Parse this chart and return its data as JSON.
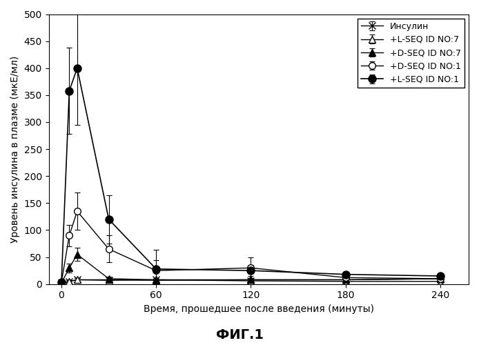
{
  "title": "ФИГ.1",
  "xlabel": "Время, прошедшее после введения (минуты)",
  "ylabel": "Уровень инсулина в плазме (мкЕ/мл)",
  "xlim": [
    -8,
    258
  ],
  "ylim": [
    0,
    500
  ],
  "yticks": [
    0,
    50,
    100,
    150,
    200,
    250,
    300,
    350,
    400,
    450,
    500
  ],
  "xticks": [
    0,
    60,
    120,
    180,
    240
  ],
  "xtick_labels": [
    "0",
    "60",
    "120",
    "180",
    "240"
  ],
  "series": [
    {
      "label": "Инсулин",
      "x": [
        0,
        5,
        10,
        30,
        60,
        120,
        180,
        240
      ],
      "y": [
        2,
        5,
        8,
        7,
        8,
        6,
        5,
        5
      ],
      "yerr": [
        1,
        2,
        3,
        3,
        2,
        2,
        2,
        2
      ],
      "marker": "x",
      "linestyle": "-",
      "color": "#000000",
      "fillstyle": "none",
      "markersize": 7,
      "linewidth": 1.0
    },
    {
      "label": "+L-SEQ ID NO:7",
      "x": [
        0,
        5,
        10,
        30,
        60,
        120,
        180,
        240
      ],
      "y": [
        2,
        5,
        8,
        8,
        7,
        8,
        8,
        10
      ],
      "yerr": [
        1,
        2,
        3,
        3,
        2,
        3,
        3,
        3
      ],
      "marker": "^",
      "linestyle": "-",
      "color": "#000000",
      "fillstyle": "none",
      "markersize": 7,
      "linewidth": 1.0
    },
    {
      "label": "+D-SEQ ID NO:7",
      "x": [
        0,
        5,
        10,
        30,
        60,
        120,
        180,
        240
      ],
      "y": [
        2,
        30,
        55,
        10,
        8,
        8,
        8,
        10
      ],
      "yerr": [
        1,
        8,
        12,
        4,
        3,
        3,
        3,
        3
      ],
      "marker": "^",
      "linestyle": "-",
      "color": "#000000",
      "fillstyle": "full",
      "markersize": 7,
      "linewidth": 1.0
    },
    {
      "label": "+D-SEQ ID NO:1",
      "x": [
        0,
        5,
        10,
        30,
        60,
        120,
        180,
        240
      ],
      "y": [
        3,
        90,
        135,
        65,
        25,
        30,
        12,
        10
      ],
      "yerr": [
        2,
        20,
        35,
        25,
        20,
        20,
        5,
        4
      ],
      "marker": "o",
      "linestyle": "-",
      "color": "#000000",
      "fillstyle": "none",
      "markersize": 7,
      "linewidth": 1.0
    },
    {
      "label": "+L-SEQ ID NO:1",
      "x": [
        0,
        5,
        10,
        30,
        60,
        120,
        180,
        240
      ],
      "y": [
        3,
        358,
        400,
        120,
        28,
        25,
        18,
        15
      ],
      "yerr": [
        2,
        80,
        105,
        45,
        35,
        10,
        5,
        4
      ],
      "marker": "o",
      "linestyle": "-",
      "color": "#000000",
      "fillstyle": "full",
      "markersize": 8,
      "linewidth": 1.2
    }
  ],
  "background_color": "#ffffff",
  "legend_loc": "upper right",
  "legend_fontsize": 9,
  "axis_fontsize": 10,
  "tick_fontsize": 10,
  "title_fontsize": 14
}
